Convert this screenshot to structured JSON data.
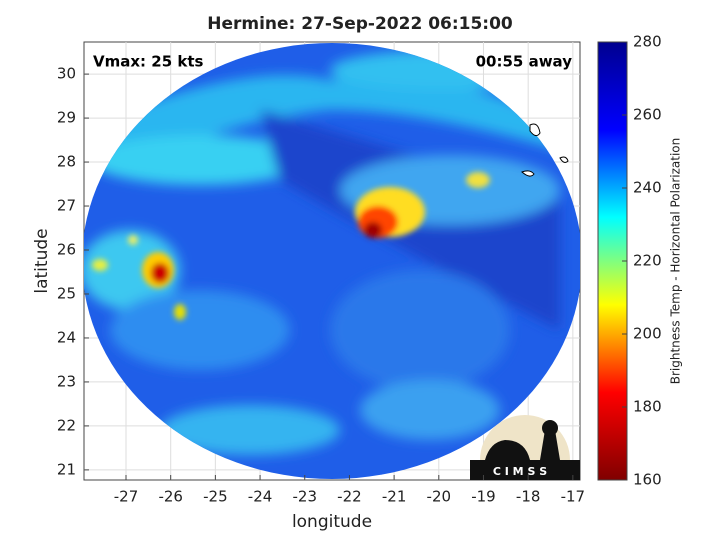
{
  "chart_data": {
    "type": "map",
    "title": "Hermine: 27-Sep-2022 06:15:00",
    "annotations": [
      "Vmax: 25 kts",
      "00:55 away"
    ],
    "xlabel": "longitude",
    "ylabel": "latitude",
    "xlim": [
      -27.94,
      -16.84
    ],
    "ylim": [
      20.77,
      30.73
    ],
    "xticks": [
      -27,
      -26,
      -25,
      -24,
      -23,
      -22,
      -21,
      -20,
      -19,
      -18,
      -17
    ],
    "yticks": [
      21,
      22,
      23,
      24,
      25,
      26,
      27,
      28,
      29,
      30
    ],
    "grid": true,
    "colorbar": {
      "label": "Brightness Temp - Horizontal Polarization",
      "lim": [
        160,
        280
      ],
      "ticks": [
        160,
        180,
        200,
        220,
        240,
        260,
        280
      ],
      "colors": [
        "#800000",
        "#ff0000",
        "#ffff00",
        "#00ffff",
        "#0000ff",
        "#00008f"
      ]
    },
    "logo_text": "C I M S S"
  }
}
